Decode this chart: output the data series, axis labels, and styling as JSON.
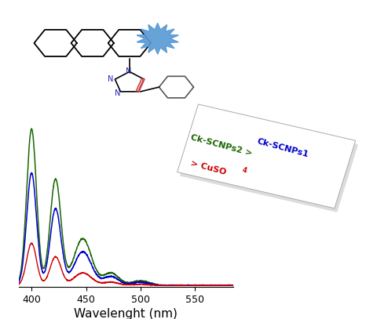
{
  "xlabel": "Wavelenght (nm)",
  "xlabel_fontsize": 11,
  "xmin": 388,
  "xmax": 585,
  "ymin": -0.01,
  "ymax": 1.05,
  "bg_color": "#ffffff",
  "line_green_color": "#1a6600",
  "line_blue_color": "#0000cc",
  "line_red_color": "#cc0000",
  "xticks": [
    400,
    450,
    500,
    550
  ],
  "legend_green": "Ck-SCNPs2 > ",
  "legend_blue": "Ck-SCNPs1",
  "legend_red_prefix": "> CuSO",
  "legend_red_sub": "4",
  "star_color": "#5b9bd5"
}
